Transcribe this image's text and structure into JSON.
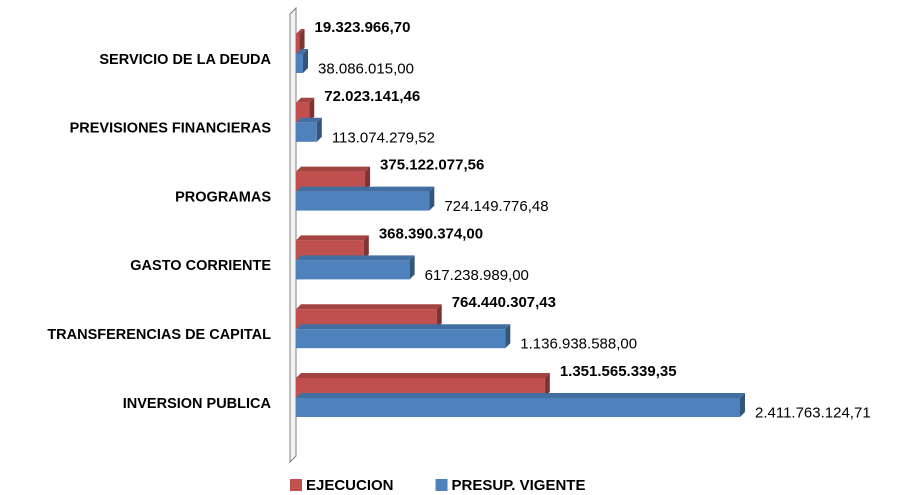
{
  "chart_data": {
    "type": "bar",
    "orientation": "horizontal",
    "categories": [
      "SERVICIO DE LA DEUDA",
      "PREVISIONES FINANCIERAS",
      "PROGRAMAS",
      "GASTO CORRIENTE",
      "TRANSFERENCIAS DE CAPITAL",
      "INVERSION PUBLICA"
    ],
    "series": [
      {
        "name": "EJECUCION",
        "color": "#c0504d",
        "values": [
          19323966.7,
          72023141.46,
          375122077.56,
          368390374.0,
          764440307.43,
          1351565339.35
        ],
        "value_labels": [
          "19.323.966,70",
          "72.023.141,46",
          "375.122.077,56",
          "368.390.374,00",
          "764.440.307,43",
          "1.351.565.339,35"
        ]
      },
      {
        "name": "PRESUP. VIGENTE",
        "color": "#4f81bd",
        "values": [
          38086015.0,
          113074279.52,
          724149776.48,
          617238989.0,
          1136938588.0,
          2411763124.71
        ],
        "value_labels": [
          "38.086.015,00",
          "113.074.279,52",
          "724.149.776,48",
          "617.238.989,00",
          "1.136.938.588,00",
          "2.411.763.124,71"
        ]
      }
    ],
    "legend": "bottom"
  }
}
